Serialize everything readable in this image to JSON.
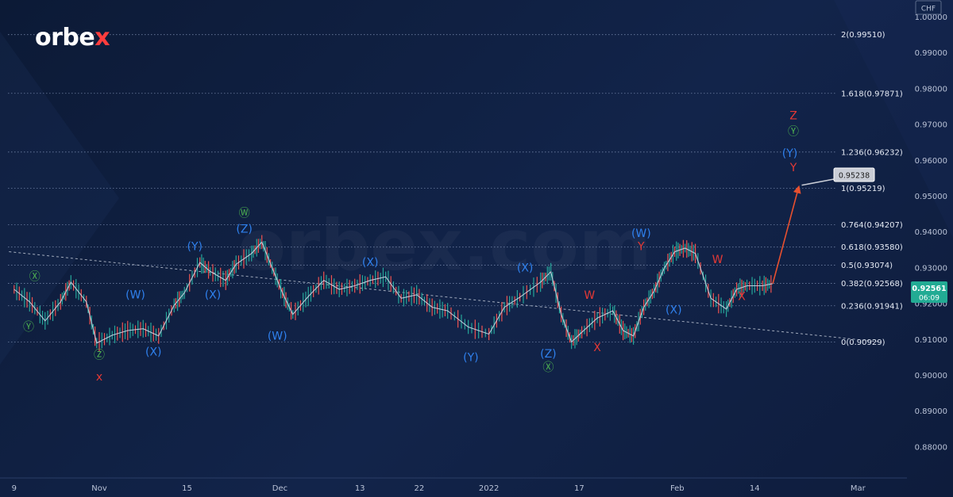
{
  "brand": {
    "name": "orbex",
    "watermark": "orbex.com"
  },
  "currency": "CHF",
  "price_tag": {
    "value": "0.92561",
    "timer": "06:09"
  },
  "target_tag": "0.95238",
  "chart_data": {
    "type": "line",
    "title": "",
    "ylim": [
      0.872,
      1.003
    ],
    "y_ticks": [
      "1.00000",
      "0.99000",
      "0.98000",
      "0.97000",
      "0.96000",
      "0.95000",
      "0.94000",
      "0.93000",
      "0.92000",
      "0.91000",
      "0.90000",
      "0.89000",
      "0.88000"
    ],
    "y_tick_values": [
      1.0,
      0.99,
      0.98,
      0.97,
      0.96,
      0.95,
      0.94,
      0.93,
      0.92,
      0.91,
      0.9,
      0.89,
      0.88
    ],
    "x_ticks": [
      {
        "label": "9",
        "x": 0
      },
      {
        "label": "Nov",
        "x": 16.5
      },
      {
        "label": "15",
        "x": 33.5
      },
      {
        "label": "Dec",
        "x": 51.5
      },
      {
        "label": "13",
        "x": 67
      },
      {
        "label": "22",
        "x": 78.5
      },
      {
        "label": "2022",
        "x": 92
      },
      {
        "label": "17",
        "x": 109.5
      },
      {
        "label": "Feb",
        "x": 128.5
      },
      {
        "label": "14",
        "x": 143.5
      },
      {
        "label": "Mar",
        "x": 163.5
      }
    ],
    "xlim": [
      -1.2,
      173
    ],
    "fibonacci_levels": [
      {
        "label": "2(0.99510)",
        "value": 0.9951
      },
      {
        "label": "1.618(0.97871)",
        "value": 0.97871
      },
      {
        "label": "1.236(0.96232)",
        "value": 0.96232
      },
      {
        "label": "1(0.95219)",
        "value": 0.95219
      },
      {
        "label": "0.764(0.94207)",
        "value": 0.94207
      },
      {
        "label": "0.618(0.93580)",
        "value": 0.9358
      },
      {
        "label": "0.5(0.93074)",
        "value": 0.93074
      },
      {
        "label": "0.382(0.92568)",
        "value": 0.92568
      },
      {
        "label": "0.236(0.91941)",
        "value": 0.91941
      },
      {
        "label": "0(0.90929)",
        "value": 0.90929
      }
    ],
    "series": [
      {
        "x": [
          0,
          3,
          6,
          9,
          11,
          14,
          16,
          19,
          22,
          25,
          28,
          31,
          33,
          36,
          38,
          41,
          43,
          46,
          48,
          50,
          52,
          54,
          57,
          60,
          63,
          66,
          69,
          72,
          75,
          78,
          81,
          84,
          88,
          92,
          95,
          98,
          102,
          104,
          106,
          108,
          110,
          113,
          116,
          118,
          120,
          122,
          124,
          126,
          128,
          130,
          132,
          135,
          138,
          140,
          142,
          145,
          147
        ],
        "y": [
          0.924,
          0.9205,
          0.9152,
          0.9205,
          0.926,
          0.9205,
          0.909,
          0.9112,
          0.9125,
          0.913,
          0.911,
          0.9195,
          0.923,
          0.9315,
          0.929,
          0.9265,
          0.931,
          0.934,
          0.9372,
          0.93,
          0.923,
          0.917,
          0.922,
          0.9265,
          0.924,
          0.925,
          0.9265,
          0.9275,
          0.9215,
          0.9225,
          0.919,
          0.918,
          0.9135,
          0.9115,
          0.919,
          0.9218,
          0.926,
          0.9289,
          0.917,
          0.9093,
          0.912,
          0.916,
          0.918,
          0.9125,
          0.911,
          0.919,
          0.9235,
          0.93,
          0.9345,
          0.9355,
          0.934,
          0.9215,
          0.9185,
          0.924,
          0.925,
          0.925,
          0.9256
        ]
      }
    ],
    "trendline": {
      "x": [
        -1,
        168
      ],
      "y": [
        0.9345,
        0.9093
      ]
    },
    "projection": {
      "x": [
        147,
        152
      ],
      "y": [
        0.9256,
        0.9524
      ]
    },
    "wave_labels": [
      {
        "text": "Ⓧ",
        "x": 4,
        "y": 0.9265,
        "color": "#4caf50"
      },
      {
        "text": "Ⓨ",
        "x": 2.8,
        "y": 0.9125,
        "color": "#4caf50"
      },
      {
        "text": "Ⓩ",
        "x": 16.5,
        "y": 0.9046,
        "color": "#4caf50"
      },
      {
        "text": "x",
        "x": 16.5,
        "y": 0.8985,
        "color": "#e53935"
      },
      {
        "text": "(W)",
        "x": 23.5,
        "y": 0.9215,
        "color": "#2f80ed"
      },
      {
        "text": "(X)",
        "x": 27,
        "y": 0.9055,
        "color": "#2f80ed"
      },
      {
        "text": "(Y)",
        "x": 35,
        "y": 0.935,
        "color": "#2f80ed"
      },
      {
        "text": "(X)",
        "x": 38.5,
        "y": 0.9215,
        "color": "#2f80ed"
      },
      {
        "text": "Ⓦ",
        "x": 44.6,
        "y": 0.9442,
        "color": "#4caf50"
      },
      {
        "text": "(Z)",
        "x": 44.6,
        "y": 0.9398,
        "color": "#2f80ed"
      },
      {
        "text": "(W)",
        "x": 51,
        "y": 0.91,
        "color": "#2f80ed"
      },
      {
        "text": "(X)",
        "x": 69,
        "y": 0.9305,
        "color": "#2f80ed"
      },
      {
        "text": "(Y)",
        "x": 88.5,
        "y": 0.904,
        "color": "#2f80ed"
      },
      {
        "text": "(X)",
        "x": 99,
        "y": 0.929,
        "color": "#2f80ed"
      },
      {
        "text": "(Z)",
        "x": 103.5,
        "y": 0.905,
        "color": "#2f80ed"
      },
      {
        "text": "Ⓧ",
        "x": 103.5,
        "y": 0.9012,
        "color": "#4caf50"
      },
      {
        "text": "W",
        "x": 111.5,
        "y": 0.9213,
        "color": "#e53935"
      },
      {
        "text": "X",
        "x": 113,
        "y": 0.9067,
        "color": "#e53935"
      },
      {
        "text": "(W)",
        "x": 121.5,
        "y": 0.9386,
        "color": "#2f80ed"
      },
      {
        "text": "Y",
        "x": 121.5,
        "y": 0.935,
        "color": "#e53935"
      },
      {
        "text": "(X)",
        "x": 127.8,
        "y": 0.9173,
        "color": "#2f80ed"
      },
      {
        "text": "W",
        "x": 136.3,
        "y": 0.9313,
        "color": "#e53935"
      },
      {
        "text": "X",
        "x": 141,
        "y": 0.921,
        "color": "#e53935"
      },
      {
        "text": "Z",
        "x": 151,
        "y": 0.9715,
        "color": "#e53935"
      },
      {
        "text": "Ⓨ",
        "x": 151,
        "y": 0.967,
        "color": "#4caf50"
      },
      {
        "text": "(Y)",
        "x": 150.3,
        "y": 0.961,
        "color": "#2f80ed"
      },
      {
        "text": "Y",
        "x": 151,
        "y": 0.957,
        "color": "#e53935"
      }
    ]
  }
}
